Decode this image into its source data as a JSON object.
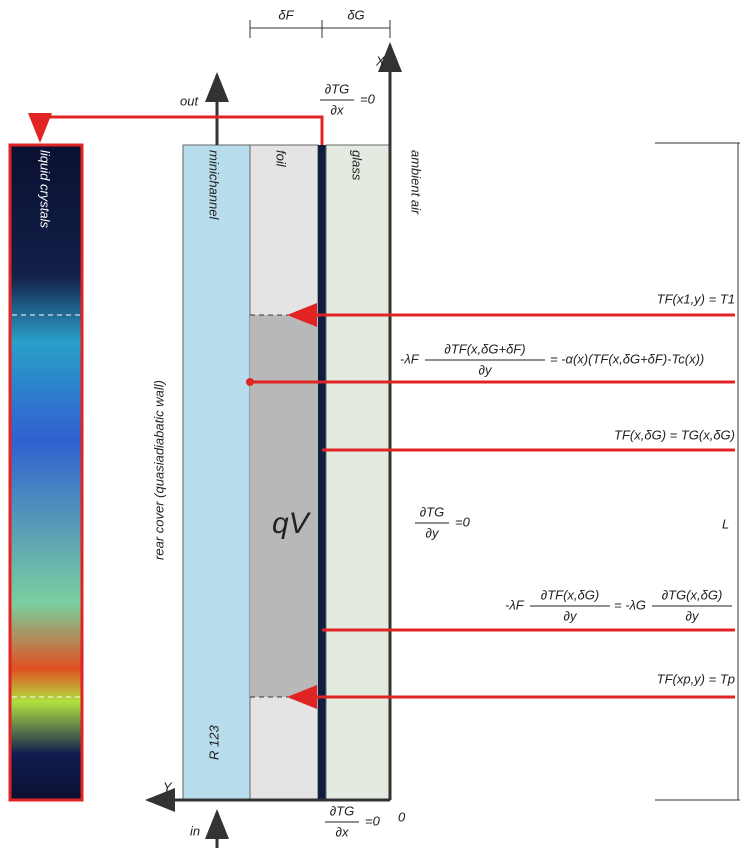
{
  "labels": {
    "delta_f": "δF",
    "delta_g": "δG",
    "x_axis": "X",
    "y_axis": "Y",
    "origin": "0",
    "out": "out",
    "in": "in",
    "liquid_crystals": "liquid crystals",
    "rear_cover": "rear cover (quasiadiabatic wall)",
    "minichannel": "minichannel",
    "foil": "foil",
    "glass": "glass",
    "ambient_air": "ambient air",
    "fluid": "R 123",
    "heat_source": "qV",
    "length": "L"
  },
  "equations": {
    "top_boundary": {
      "num": "∂TG",
      "den": "∂x",
      "rhs": "=0"
    },
    "bottom_boundary": {
      "num": "∂TG",
      "den": "∂x",
      "rhs": "=0"
    },
    "side_boundary": {
      "num": "∂TG",
      "den": "∂y",
      "rhs": "=0"
    },
    "inlet_temp": "TF(x1,y) = T1",
    "convection": {
      "lhs": "-λF",
      "num": "∂TF(x,δG+δF)",
      "den": "∂y",
      "rhs": "= -α(x)(TF(x,δG+δF)-Tc(x))"
    },
    "continuity": "TF(x,δG) = TG(x,δG)",
    "flux": {
      "lhs": "-λF",
      "num": "∂TF(x,δG)",
      "den": "∂y",
      "mid": "= -λG",
      "num2": "∂TG(x,δG)",
      "den2": "∂y"
    },
    "outlet_temp": "TF(xp,y) = Tp"
  }
}
